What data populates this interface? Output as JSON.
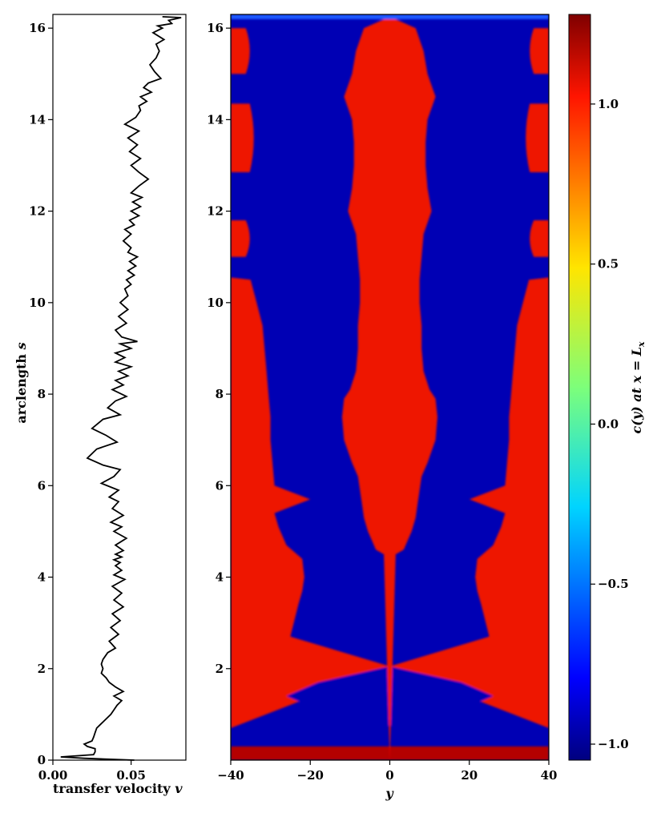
{
  "chart_data": [
    {
      "type": "line",
      "xlabel": "transfer velocity",
      "xlabel_symbol": "v",
      "ylabel": "arclength",
      "ylabel_symbol": "s",
      "xlim": [
        0.0,
        0.085
      ],
      "ylim": [
        0,
        16.3
      ],
      "xticks": [
        "0.00",
        "0.05"
      ],
      "yticks": [
        "0",
        "2",
        "4",
        "6",
        "8",
        "10",
        "12",
        "14",
        "16"
      ],
      "series": [
        {
          "color": "#000000",
          "points": [
            [
              0.052,
              0.0
            ],
            [
              0.02,
              0.04
            ],
            [
              0.005,
              0.07
            ],
            [
              0.026,
              0.12
            ],
            [
              0.027,
              0.18
            ],
            [
              0.027,
              0.25
            ],
            [
              0.022,
              0.3
            ],
            [
              0.02,
              0.35
            ],
            [
              0.025,
              0.42
            ],
            [
              0.026,
              0.5
            ],
            [
              0.027,
              0.6
            ],
            [
              0.028,
              0.7
            ],
            [
              0.031,
              0.8
            ],
            [
              0.034,
              0.9
            ],
            [
              0.037,
              1.0
            ],
            [
              0.039,
              1.1
            ],
            [
              0.041,
              1.2
            ],
            [
              0.044,
              1.3
            ],
            [
              0.039,
              1.4
            ],
            [
              0.045,
              1.5
            ],
            [
              0.04,
              1.6
            ],
            [
              0.036,
              1.7
            ],
            [
              0.034,
              1.8
            ],
            [
              0.031,
              1.9
            ],
            [
              0.032,
              2.0
            ],
            [
              0.031,
              2.1
            ],
            [
              0.032,
              2.2
            ],
            [
              0.035,
              2.35
            ],
            [
              0.04,
              2.45
            ],
            [
              0.036,
              2.6
            ],
            [
              0.042,
              2.75
            ],
            [
              0.037,
              2.9
            ],
            [
              0.043,
              3.05
            ],
            [
              0.038,
              3.2
            ],
            [
              0.045,
              3.35
            ],
            [
              0.039,
              3.5
            ],
            [
              0.044,
              3.65
            ],
            [
              0.038,
              3.8
            ],
            [
              0.046,
              3.95
            ],
            [
              0.039,
              4.05
            ],
            [
              0.044,
              4.15
            ],
            [
              0.04,
              4.25
            ],
            [
              0.043,
              4.32
            ],
            [
              0.039,
              4.38
            ],
            [
              0.044,
              4.44
            ],
            [
              0.04,
              4.5
            ],
            [
              0.045,
              4.58
            ],
            [
              0.04,
              4.7
            ],
            [
              0.047,
              4.85
            ],
            [
              0.039,
              5.0
            ],
            [
              0.044,
              5.1
            ],
            [
              0.037,
              5.2
            ],
            [
              0.045,
              5.35
            ],
            [
              0.038,
              5.5
            ],
            [
              0.042,
              5.65
            ],
            [
              0.036,
              5.75
            ],
            [
              0.042,
              5.9
            ],
            [
              0.031,
              6.05
            ],
            [
              0.039,
              6.2
            ],
            [
              0.043,
              6.35
            ],
            [
              0.032,
              6.45
            ],
            [
              0.022,
              6.6
            ],
            [
              0.028,
              6.8
            ],
            [
              0.041,
              6.95
            ],
            [
              0.034,
              7.1
            ],
            [
              0.025,
              7.25
            ],
            [
              0.032,
              7.45
            ],
            [
              0.043,
              7.55
            ],
            [
              0.035,
              7.7
            ],
            [
              0.04,
              7.85
            ],
            [
              0.047,
              7.95
            ],
            [
              0.038,
              8.1
            ],
            [
              0.045,
              8.2
            ],
            [
              0.04,
              8.3
            ],
            [
              0.048,
              8.4
            ],
            [
              0.042,
              8.5
            ],
            [
              0.05,
              8.6
            ],
            [
              0.04,
              8.7
            ],
            [
              0.046,
              8.8
            ],
            [
              0.04,
              8.9
            ],
            [
              0.05,
              9.0
            ],
            [
              0.043,
              9.1
            ],
            [
              0.054,
              9.15
            ],
            [
              0.044,
              9.25
            ],
            [
              0.04,
              9.4
            ],
            [
              0.047,
              9.55
            ],
            [
              0.042,
              9.7
            ],
            [
              0.048,
              9.85
            ],
            [
              0.043,
              10.0
            ],
            [
              0.048,
              10.15
            ],
            [
              0.046,
              10.3
            ],
            [
              0.05,
              10.4
            ],
            [
              0.047,
              10.5
            ],
            [
              0.052,
              10.6
            ],
            [
              0.048,
              10.7
            ],
            [
              0.053,
              10.8
            ],
            [
              0.049,
              10.9
            ],
            [
              0.054,
              11.0
            ],
            [
              0.048,
              11.1
            ],
            [
              0.05,
              11.2
            ],
            [
              0.045,
              11.35
            ],
            [
              0.05,
              11.5
            ],
            [
              0.046,
              11.6
            ],
            [
              0.052,
              11.7
            ],
            [
              0.049,
              11.8
            ],
            [
              0.055,
              11.9
            ],
            [
              0.05,
              12.0
            ],
            [
              0.056,
              12.1
            ],
            [
              0.051,
              12.2
            ],
            [
              0.057,
              12.3
            ],
            [
              0.05,
              12.4
            ],
            [
              0.055,
              12.55
            ],
            [
              0.061,
              12.7
            ],
            [
              0.055,
              12.85
            ],
            [
              0.05,
              13.0
            ],
            [
              0.056,
              13.15
            ],
            [
              0.049,
              13.3
            ],
            [
              0.054,
              13.45
            ],
            [
              0.048,
              13.6
            ],
            [
              0.055,
              13.75
            ],
            [
              0.046,
              13.9
            ],
            [
              0.053,
              14.05
            ],
            [
              0.056,
              14.2
            ],
            [
              0.055,
              14.3
            ],
            [
              0.06,
              14.4
            ],
            [
              0.056,
              14.5
            ],
            [
              0.063,
              14.6
            ],
            [
              0.058,
              14.7
            ],
            [
              0.061,
              14.8
            ],
            [
              0.069,
              14.9
            ],
            [
              0.065,
              15.05
            ],
            [
              0.062,
              15.2
            ],
            [
              0.066,
              15.35
            ],
            [
              0.068,
              15.5
            ],
            [
              0.066,
              15.65
            ],
            [
              0.071,
              15.75
            ],
            [
              0.064,
              15.9
            ],
            [
              0.07,
              16.0
            ],
            [
              0.067,
              16.05
            ],
            [
              0.076,
              16.1
            ],
            [
              0.074,
              16.17
            ],
            [
              0.082,
              16.23
            ],
            [
              0.07,
              16.25
            ]
          ]
        }
      ]
    },
    {
      "type": "heatmap",
      "xlabel": "y",
      "xlim": [
        -40,
        40
      ],
      "ylim": [
        0,
        16.3
      ],
      "xticks": [
        "−40",
        "−20",
        "0",
        "20",
        "40"
      ],
      "yticks": [
        "2",
        "4",
        "6",
        "8",
        "10",
        "12",
        "14",
        "16"
      ],
      "colorbar": {
        "label": "c(y)  at  x = L",
        "label_sub": "x",
        "range": [
          -1.05,
          1.28
        ],
        "ticks": [
          "−1.0",
          "−0.5",
          "0.0",
          "0.5",
          "1.0"
        ],
        "colormap": "jet"
      },
      "description_values": {
        "red_value": 1.0,
        "blue_value": -1.0
      },
      "center_stripe": [
        [
          0.0,
          0
        ],
        [
          4.5,
          1.5
        ],
        [
          4.6,
          3.5
        ],
        [
          4.8,
          4.5
        ],
        [
          5.0,
          5.5
        ],
        [
          5.3,
          6.5
        ],
        [
          5.6,
          7.0
        ],
        [
          5.9,
          7.5
        ],
        [
          6.2,
          8.0
        ],
        [
          6.5,
          9.5
        ],
        [
          7.0,
          11.5
        ],
        [
          7.5,
          12
        ],
        [
          7.9,
          11.5
        ],
        [
          8.1,
          10.0
        ],
        [
          8.5,
          8.5
        ],
        [
          9.0,
          8.0
        ],
        [
          9.5,
          8.0
        ],
        [
          10.0,
          7.5
        ],
        [
          10.5,
          7.5
        ],
        [
          11.0,
          8.0
        ],
        [
          11.5,
          8.5
        ],
        [
          12.0,
          10.5
        ],
        [
          12.5,
          9.5
        ],
        [
          13.0,
          9.0
        ],
        [
          13.5,
          9.0
        ],
        [
          14.0,
          9.5
        ],
        [
          14.5,
          11.5
        ],
        [
          15.0,
          9.5
        ],
        [
          15.5,
          8.5
        ],
        [
          16.0,
          6.5
        ],
        [
          16.25,
          0
        ]
      ],
      "outer_red_boundary": [
        [
          0.0,
          40
        ],
        [
          0.7,
          40
        ],
        [
          2.05,
          0
        ],
        [
          2.7,
          25
        ],
        [
          3.05,
          24
        ],
        [
          3.4,
          23
        ],
        [
          3.7,
          22
        ],
        [
          4.0,
          21.5
        ],
        [
          4.4,
          22
        ],
        [
          4.7,
          26
        ],
        [
          5.1,
          28
        ],
        [
          5.4,
          29
        ],
        [
          5.7,
          20
        ],
        [
          6.0,
          29
        ],
        [
          6.5,
          29.5
        ],
        [
          7.0,
          30
        ],
        [
          7.5,
          30
        ],
        [
          8.0,
          30.5
        ],
        [
          8.5,
          31
        ],
        [
          9.0,
          31.5
        ],
        [
          9.5,
          32
        ],
        [
          10.0,
          33.5
        ],
        [
          10.5,
          35
        ],
        [
          10.55,
          40
        ]
      ],
      "inner_blue_diamond": [
        [
          0.75,
          0
        ],
        [
          1.1,
          18
        ],
        [
          1.4,
          26
        ],
        [
          1.7,
          18
        ],
        [
          2.05,
          0
        ]
      ],
      "side_bulges": [
        {
          "s": [
            11.0,
            11.8
          ],
          "inner_y": 35
        },
        {
          "s": [
            12.85,
            14.35
          ],
          "inner_y": 34
        },
        {
          "s": [
            15.0,
            16.0
          ],
          "inner_y": 35
        }
      ]
    }
  ]
}
